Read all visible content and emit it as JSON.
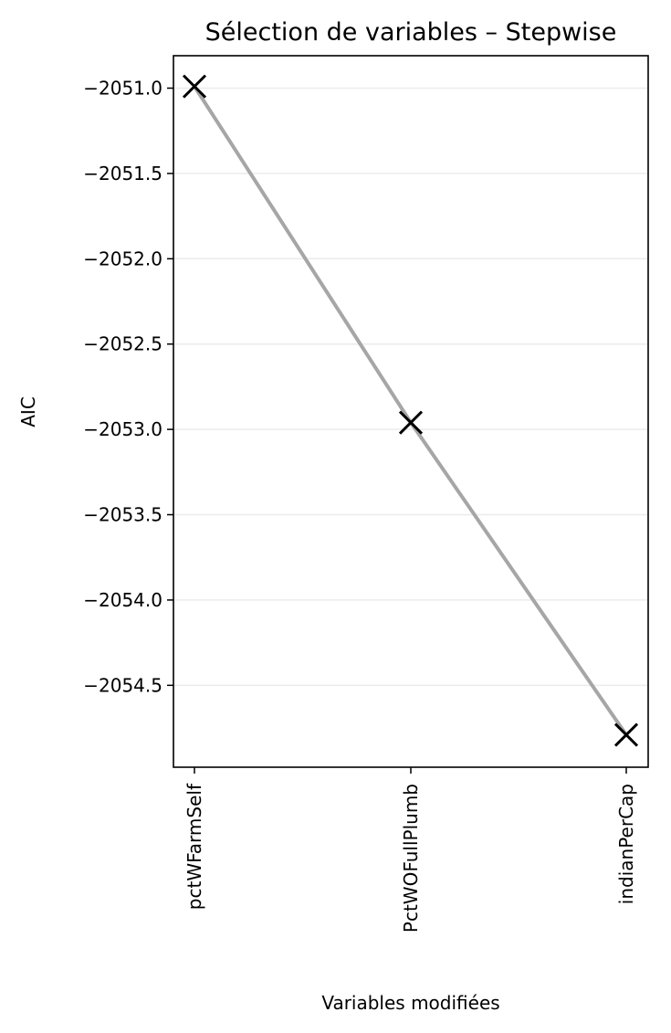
{
  "chart_data": {
    "type": "line",
    "title": "Sélection de variables – Stepwise",
    "xlabel": "Variables modifiées",
    "ylabel": "AIC",
    "categories": [
      "pctWFarmSelf",
      "PctWOFullPlumb",
      "indianPerCap"
    ],
    "series": [
      {
        "values": [
          -2050.99,
          -2052.96,
          -2054.79
        ]
      }
    ],
    "ylim": [
      -2054.98,
      -2050.81
    ],
    "yticks": [
      -2051.0,
      -2051.5,
      -2052.0,
      -2052.5,
      -2053.0,
      -2053.5,
      -2054.0,
      -2054.5
    ],
    "ytick_labels": [
      "−2051.0",
      "−2051.5",
      "−2052.0",
      "−2052.5",
      "−2053.0",
      "−2053.5",
      "−2054.0",
      "−2054.5"
    ],
    "grid": "y",
    "line_color": "#a6a6a6",
    "marker": "x",
    "marker_color": "#000000"
  }
}
